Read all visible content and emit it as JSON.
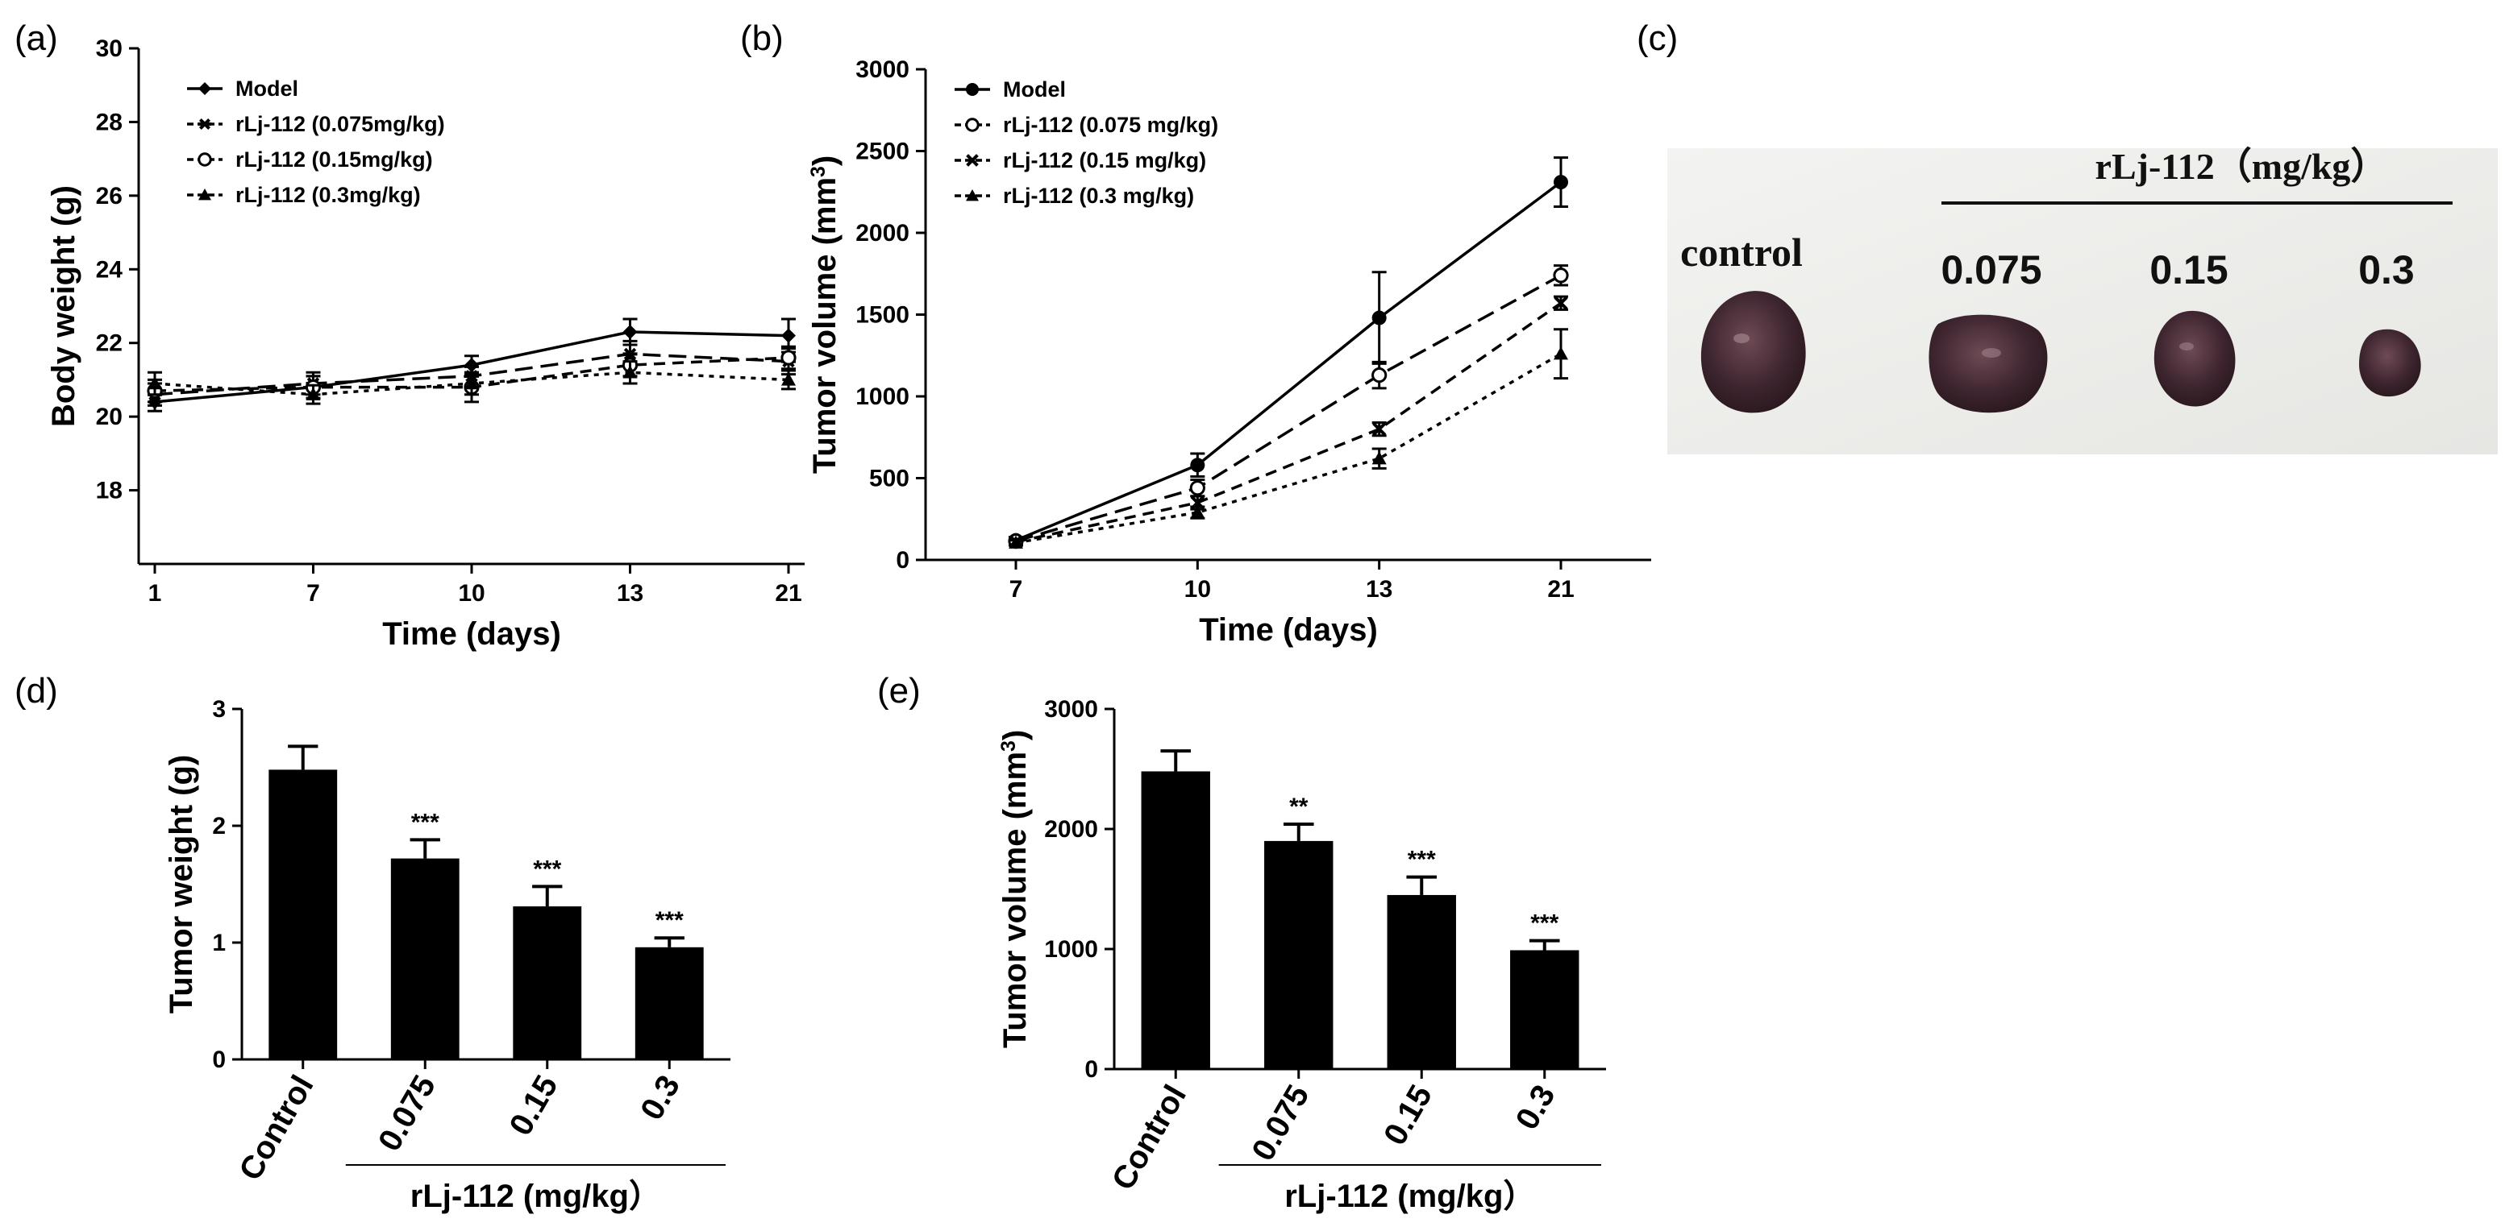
{
  "panel_labels": {
    "a": "(a)",
    "b": "(b)",
    "c": "(c)",
    "d": "(d)",
    "e": "(e)"
  },
  "photo": {
    "group_label": "rLj-112（mg/kg）",
    "control_label": "control",
    "dose_labels": [
      "0.075",
      "0.15",
      "0.3"
    ]
  },
  "chart_data": [
    {
      "id": "a",
      "type": "line",
      "title": "",
      "xlabel": "Time (days)",
      "ylabel": "Body weight (g)",
      "categories": [
        "1",
        "7",
        "10",
        "13",
        "21"
      ],
      "ylim": [
        16,
        30
      ],
      "yticks": [
        18,
        20,
        22,
        24,
        26,
        28,
        30
      ],
      "legend_position": "top-left",
      "series": [
        {
          "name": "Model",
          "marker": "diamond",
          "dash": "solid",
          "values": [
            20.4,
            20.8,
            21.4,
            22.3,
            22.2
          ],
          "errors": [
            0.25,
            0.3,
            0.25,
            0.35,
            0.45
          ]
        },
        {
          "name": "rLj-112 (0.075mg/kg)",
          "marker": "star",
          "dash": "longdash",
          "values": [
            20.6,
            20.9,
            21.1,
            21.7,
            21.5
          ],
          "errors": [
            0.3,
            0.3,
            0.25,
            0.35,
            0.35
          ]
        },
        {
          "name": "rLj-112 (0.15mg/kg)",
          "marker": "circle-open",
          "dash": "dash",
          "values": [
            20.7,
            20.8,
            20.8,
            21.4,
            21.6
          ],
          "errors": [
            0.3,
            0.3,
            0.4,
            0.3,
            0.3
          ]
        },
        {
          "name": "rLj-112 (0.3mg/kg)",
          "marker": "triangle",
          "dash": "dot",
          "values": [
            20.9,
            20.6,
            20.9,
            21.2,
            21.0
          ],
          "errors": [
            0.3,
            0.25,
            0.3,
            0.3,
            0.25
          ]
        }
      ]
    },
    {
      "id": "b",
      "type": "line",
      "title": "",
      "xlabel": "Time (days)",
      "ylabel": "Tumor volume (mm",
      "ylabel_sup": "3",
      "ylabel_end": ")",
      "categories": [
        "7",
        "10",
        "13",
        "21"
      ],
      "ylim": [
        0,
        3000
      ],
      "yticks": [
        0,
        500,
        1000,
        1500,
        2000,
        2500,
        3000
      ],
      "legend_position": "top-left",
      "series": [
        {
          "name": "Model",
          "marker": "circle-filled",
          "dash": "solid",
          "values": [
            120,
            580,
            1480,
            2310
          ],
          "errors": [
            20,
            70,
            280,
            150
          ]
        },
        {
          "name": "rLj-112 (0.075 mg/kg)",
          "marker": "circle-open",
          "dash": "longdash",
          "values": [
            115,
            440,
            1130,
            1740
          ],
          "errors": [
            15,
            50,
            80,
            60
          ]
        },
        {
          "name": "rLj-112 (0.15 mg/kg)",
          "marker": "cross",
          "dash": "dash",
          "values": [
            110,
            350,
            800,
            1570
          ],
          "errors": [
            15,
            40,
            40,
            40
          ]
        },
        {
          "name": "rLj-112 (0.3 mg/kg)",
          "marker": "triangle",
          "dash": "dot",
          "values": [
            105,
            290,
            620,
            1260
          ],
          "errors": [
            15,
            35,
            60,
            150
          ]
        }
      ]
    },
    {
      "id": "d",
      "type": "bar",
      "title": "",
      "xlabel": "rLj-112 (mg/kg）",
      "ylabel": "Tumor weight (g)",
      "categories": [
        "Control",
        "0.075",
        "0.15",
        "0.3"
      ],
      "values": [
        2.48,
        1.72,
        1.31,
        0.96
      ],
      "errors": [
        0.2,
        0.16,
        0.17,
        0.08
      ],
      "significance": [
        "",
        "***",
        "***",
        "***"
      ],
      "ylim": [
        0,
        3
      ],
      "yticks": [
        0,
        1,
        2,
        3
      ]
    },
    {
      "id": "e",
      "type": "bar",
      "title": "",
      "xlabel": "rLj-112 (mg/kg）",
      "ylabel": "Tumor volume (mm",
      "ylabel_sup": "3",
      "ylabel_end": ")",
      "categories": [
        "Control",
        "0.075",
        "0.15",
        "0.3"
      ],
      "values": [
        2480,
        1900,
        1450,
        990
      ],
      "errors": [
        170,
        140,
        150,
        80
      ],
      "significance": [
        "",
        "**",
        "***",
        "***"
      ],
      "ylim": [
        0,
        3000
      ],
      "yticks": [
        0,
        1000,
        2000,
        3000
      ]
    }
  ]
}
